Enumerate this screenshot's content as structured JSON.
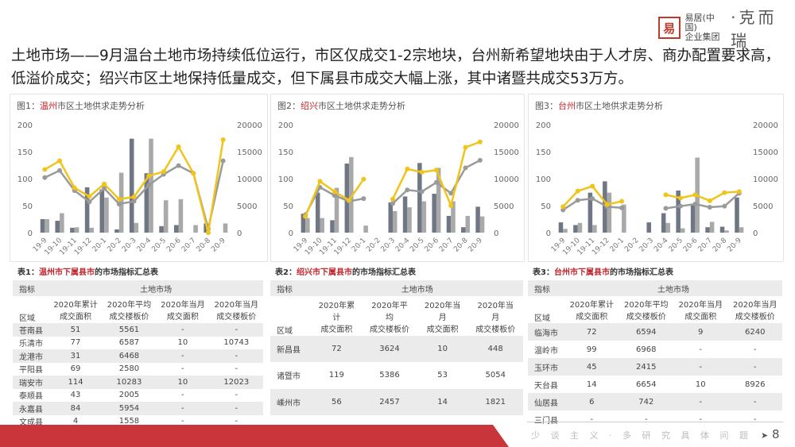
{
  "logo": {
    "seal": "易",
    "line1": "易居(中国)",
    "line2": "企业集团",
    "brand": "·克而瑞"
  },
  "headline": "土地市场——9月温台土地市场持续低位运行，市区仅成交1-2宗地块，台州新希望地块由于人才房、商办配置要求高，低溢价成交；绍兴市区土地保持低量成交，但下属县市成交大幅上涨，其中诸暨共成交53万方。",
  "colors": {
    "accent": "#c0272d",
    "dark_bar": "#6f7785",
    "light_bar": "#a9a9a9",
    "yellow_line": "#f0c419",
    "gray_line": "#9a9a9a",
    "footer": "#c8363b"
  },
  "chart_data": [
    {
      "type": "bar+line",
      "title_prefix": "图1：",
      "title_city": "温州",
      "title_suffix": "市区土地供求走势分析",
      "categories": [
        "19-9",
        "19-10",
        "19-11",
        "19-12",
        "20-1",
        "20-2",
        "20-3",
        "20-4",
        "20-5",
        "20-6",
        "20-7",
        "20-8",
        "20-9"
      ],
      "ylim": [
        0,
        200
      ],
      "y2lim": [
        0,
        20000
      ],
      "yticks": [
        "0",
        "50",
        "100",
        "150",
        "200"
      ],
      "y2ticks": [
        "0",
        "5000",
        "10000",
        "15000",
        "20000"
      ],
      "dark_bars": [
        25,
        22,
        9,
        84,
        80,
        6,
        174,
        110,
        12,
        14,
        0,
        17,
        0
      ],
      "light_bars": [
        25,
        36,
        10,
        9,
        65,
        111,
        18,
        174,
        60,
        62,
        14,
        0,
        17
      ],
      "yellow_line": [
        11700,
        13300,
        8300,
        6700,
        9000,
        6200,
        6600,
        10500,
        11300,
        15900,
        11000,
        0,
        17200
      ],
      "gray_line": [
        10200,
        11500,
        7800,
        5700,
        8200,
        5300,
        5800,
        8800,
        10800,
        12400,
        11000,
        700,
        13300
      ]
    },
    {
      "type": "bar+line",
      "title_prefix": "图2：",
      "title_city": "绍兴",
      "title_suffix": "市区土地供求走势分析",
      "categories": [
        "19-9",
        "19-10",
        "19-11",
        "19-12",
        "20-1",
        "20-2",
        "20-3",
        "20-4",
        "20-5",
        "20-6",
        "20-7",
        "20-8",
        "20-9"
      ],
      "ylim": [
        0,
        200
      ],
      "y2lim": [
        0,
        20000
      ],
      "yticks": [
        "0",
        "50",
        "100",
        "150",
        "200"
      ],
      "y2ticks": [
        "0",
        "5000",
        "10000",
        "15000",
        "20000"
      ],
      "dark_bars": [
        35,
        74,
        23,
        128,
        0,
        0,
        56,
        67,
        129,
        72,
        31,
        10,
        48
      ],
      "light_bars": [
        27,
        27,
        83,
        140,
        13,
        0,
        40,
        47,
        58,
        120,
        58,
        31,
        30
      ],
      "yellow_line": [
        3000,
        9500,
        7600,
        6000,
        9900,
        null,
        6200,
        11800,
        11200,
        11600,
        5000,
        15800,
        16800
      ],
      "gray_line": [
        3300,
        8400,
        6900,
        5800,
        6300,
        null,
        5400,
        7900,
        7600,
        9300,
        7300,
        12000,
        13400
      ]
    },
    {
      "type": "bar+line",
      "title_prefix": "图3：",
      "title_city": "台州",
      "title_suffix": "市区土地供求走势分析",
      "categories": [
        "19-9",
        "19-10",
        "19-11",
        "19-12",
        "20-1",
        "20-2",
        "20-3",
        "20-4",
        "20-5",
        "20-6",
        "20-7",
        "20-8",
        "20-9"
      ],
      "ylim": [
        0,
        200
      ],
      "y2lim": [
        0,
        20000
      ],
      "yticks": [
        "0",
        "50",
        "100",
        "150",
        "200"
      ],
      "y2ticks": [
        "0",
        "5000",
        "10000",
        "15000",
        "20000"
      ],
      "dark_bars": [
        19,
        14,
        74,
        95,
        0,
        0,
        19,
        36,
        78,
        52,
        10,
        11,
        65
      ],
      "light_bars": [
        7,
        18,
        14,
        74,
        52,
        0,
        0,
        18,
        8,
        139,
        20,
        4,
        10
      ],
      "yellow_line": [
        4800,
        7700,
        8600,
        5200,
        5800,
        null,
        null,
        7000,
        6400,
        7000,
        5900,
        7400,
        7600
      ],
      "gray_line": [
        4200,
        6000,
        6300,
        4800,
        4600,
        null,
        null,
        4500,
        4900,
        5300,
        4700,
        4900,
        7300
      ]
    }
  ],
  "tables": [
    {
      "title_prefix": "表1：",
      "title_city": "温州市下属县市",
      "title_suffix": "的市场指标汇总表",
      "corner_top": "指标",
      "corner_bottom": "区域",
      "group": "土地市场",
      "columns": [
        "2020年累计\n成交面积",
        "2020年平均\n成交楼板价",
        "2020年当月\n成交面积",
        "2020年当月\n成交楼板价"
      ],
      "rows": [
        [
          "苍南县",
          "51",
          "5561",
          "-",
          "-"
        ],
        [
          "乐清市",
          "77",
          "6587",
          "10",
          "10743"
        ],
        [
          "龙港市",
          "31",
          "6468",
          "-",
          "-"
        ],
        [
          "平阳县",
          "69",
          "2580",
          "-",
          "-"
        ],
        [
          "瑞安市",
          "114",
          "10283",
          "10",
          "12023"
        ],
        [
          "泰顺县",
          "43",
          "2005",
          "-",
          "-"
        ],
        [
          "永嘉县",
          "84",
          "5954",
          "-",
          "-"
        ],
        [
          "文成县",
          "4",
          "1558",
          "-",
          "-"
        ]
      ]
    },
    {
      "title_prefix": "表2：",
      "title_city": "绍兴市下属县市",
      "title_suffix": "的市场指标汇总表",
      "corner_top": "指标",
      "corner_bottom": "区域",
      "group": "土地市场",
      "columns": [
        "2020年累\n计\n成交面积",
        "2020年平\n均\n成交楼板价",
        "2020年当\n月\n成交面积",
        "2020年当\n月\n成交楼板价"
      ],
      "rows": [
        [
          "新昌县",
          "72",
          "3624",
          "10",
          "448"
        ],
        [
          "诸暨市",
          "119",
          "5386",
          "53",
          "5054"
        ],
        [
          "嵊州市",
          "56",
          "2457",
          "14",
          "1821"
        ]
      ]
    },
    {
      "title_prefix": "表3：",
      "title_city": "台州市下属县市",
      "title_suffix": "的市场指标汇总表",
      "corner_top": "指标",
      "corner_bottom": "区域",
      "group": "土地市场",
      "columns": [
        "2020年累计\n成交面积",
        "2020年平均\n成交楼板价",
        "2020年当月\n成交面积",
        "2020年当月\n成交楼板价"
      ],
      "rows": [
        [
          "临海市",
          "72",
          "6594",
          "9",
          "6240"
        ],
        [
          "温岭市",
          "99",
          "6968",
          "-",
          "-"
        ],
        [
          "玉环市",
          "45",
          "2415",
          "-",
          "-"
        ],
        [
          "天台县",
          "14",
          "6654",
          "10",
          "8926"
        ],
        [
          "仙居县",
          "6",
          "742",
          "-",
          "-"
        ],
        [
          "三门县",
          "-",
          "-",
          "-",
          "-"
        ]
      ]
    }
  ],
  "footer": {
    "slogan": "少 谈 主 义 · 多 研 究 具 体 问 题",
    "arrow": "➤",
    "page": "8"
  }
}
